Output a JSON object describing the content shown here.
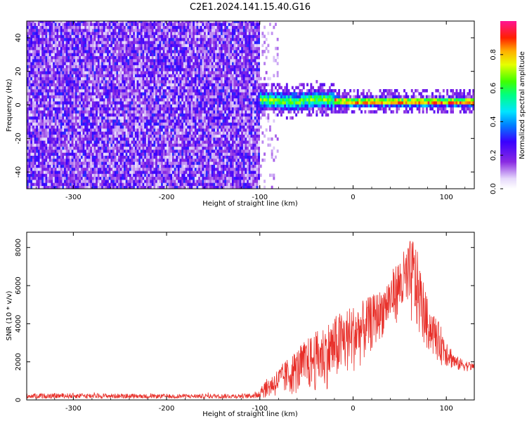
{
  "figure_title": "C2E1.2024.141.15.40.G16",
  "colors": {
    "snr_line": "#e8302a",
    "spectrogram_background": "#ffffff",
    "axis": "#000000"
  },
  "colorbar": {
    "label": "Normalized spectral amplitude",
    "ticks": [
      "0.0",
      "0.2",
      "0.4",
      "0.6",
      "0.8"
    ],
    "range": [
      0,
      1
    ],
    "colormap": "rainbow (white → purple → blue → cyan → green → yellow → red → magenta)"
  },
  "chart_data": [
    {
      "type": "heatmap",
      "panel": "top",
      "title": "",
      "xlabel": "Height of straight line (km)",
      "ylabel": "Frequency (Hz)",
      "xlim": [
        -350,
        130
      ],
      "ylim": [
        -50,
        50
      ],
      "x_ticks": [
        "-300",
        "-200",
        "-100",
        "0",
        "100"
      ],
      "y_ticks": [
        "-40",
        "-20",
        "0",
        "20",
        "40"
      ],
      "regions": [
        {
          "x_range": [
            -350,
            -100
          ],
          "freq_range": [
            -50,
            50
          ],
          "amplitude": "low (0.1–0.4), noise filling full band"
        },
        {
          "x_range": [
            -100,
            130
          ],
          "freq_range": [
            -5,
            8
          ],
          "amplitude": "strong (0.3–1.0) narrow band near 0–2 Hz"
        }
      ],
      "band_center_hz": [
        {
          "x": -95,
          "freq": 2
        },
        {
          "x": -60,
          "freq": 1
        },
        {
          "x": -40,
          "freq": 3
        },
        {
          "x": -10,
          "freq": 1
        },
        {
          "x": 20,
          "freq": 1
        },
        {
          "x": 60,
          "freq": 1
        },
        {
          "x": 100,
          "freq": 1
        },
        {
          "x": 130,
          "freq": 1
        }
      ]
    },
    {
      "type": "line",
      "panel": "bottom",
      "title": "",
      "xlabel": "Height of straight line (km)",
      "ylabel": "SNR (10 * v/v)",
      "xlim": [
        -350,
        130
      ],
      "ylim": [
        0,
        8800
      ],
      "x_ticks": [
        "-300",
        "-200",
        "-100",
        "0",
        "100"
      ],
      "y_ticks": [
        "0",
        "2000",
        "4000",
        "6000",
        "8000"
      ],
      "series": [
        {
          "color": "#e8302a",
          "envelope": [
            {
              "x": -350,
              "low": 30,
              "high": 450
            },
            {
              "x": -300,
              "low": 30,
              "high": 480
            },
            {
              "x": -250,
              "low": 30,
              "high": 440
            },
            {
              "x": -200,
              "low": 30,
              "high": 400
            },
            {
              "x": -150,
              "low": 30,
              "high": 420
            },
            {
              "x": -110,
              "low": 40,
              "high": 450
            },
            {
              "x": -90,
              "low": 100,
              "high": 1200
            },
            {
              "x": -70,
              "low": 200,
              "high": 2200
            },
            {
              "x": -50,
              "low": 300,
              "high": 3200
            },
            {
              "x": -30,
              "low": 500,
              "high": 4000
            },
            {
              "x": -10,
              "low": 1000,
              "high": 4800
            },
            {
              "x": 10,
              "low": 1800,
              "high": 5200
            },
            {
              "x": 30,
              "low": 3200,
              "high": 5800
            },
            {
              "x": 50,
              "low": 4200,
              "high": 7500
            },
            {
              "x": 65,
              "low": 3600,
              "high": 8700
            },
            {
              "x": 80,
              "low": 2500,
              "high": 5200
            },
            {
              "x": 95,
              "low": 1800,
              "high": 3800
            },
            {
              "x": 110,
              "low": 1500,
              "high": 2300
            },
            {
              "x": 130,
              "low": 1500,
              "high": 1900
            }
          ]
        }
      ]
    }
  ]
}
